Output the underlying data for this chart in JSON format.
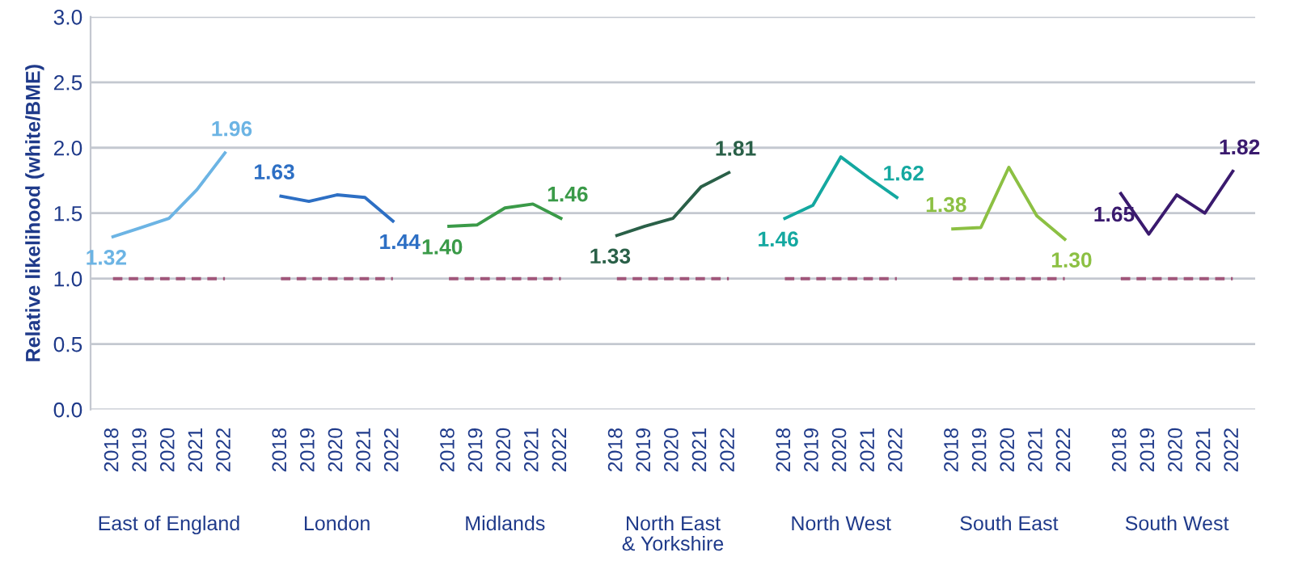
{
  "chart_data": {
    "type": "line",
    "ylabel": "Relative likelihood (white/BME)",
    "categories": [
      "2018",
      "2019",
      "2020",
      "2021",
      "2022",
      null,
      "2018",
      "2019",
      "2020",
      "2021",
      "2022",
      null,
      "2018",
      "2019",
      "2020",
      "2021",
      "2022",
      null,
      "2018",
      "2019",
      "2020",
      "2021",
      "2022",
      null,
      "2018",
      "2019",
      "2020",
      "2021",
      "2022",
      null,
      "2018",
      "2019",
      "2020",
      "2021",
      "2022",
      null,
      "2018",
      "2019",
      "2020",
      "2021",
      "2022"
    ],
    "series": [
      {
        "color": "#6cb4e4",
        "values": [
          1.32,
          1.39,
          1.46,
          1.68,
          1.96,
          null,
          null,
          null,
          null,
          null,
          null,
          null,
          null,
          null,
          null,
          null,
          null,
          null,
          null,
          null,
          null,
          null,
          null,
          null,
          null,
          null,
          null,
          null,
          null,
          null,
          null,
          null,
          null,
          null,
          null,
          null,
          null,
          null,
          null,
          null,
          null
        ],
        "value_labels": [
          "1.32",
          null,
          null,
          null,
          "1.96",
          null,
          null,
          null,
          null,
          null,
          null,
          null,
          null,
          null,
          null,
          null,
          null,
          null,
          null,
          null,
          null,
          null,
          null,
          null,
          null,
          null,
          null,
          null,
          null,
          null,
          null,
          null,
          null,
          null,
          null,
          null,
          null,
          null,
          null,
          null,
          null
        ]
      },
      {
        "color": "#2d6fc4",
        "values": [
          null,
          null,
          null,
          null,
          null,
          null,
          1.63,
          1.59,
          1.64,
          1.62,
          1.44,
          null,
          null,
          null,
          null,
          null,
          null,
          null,
          null,
          null,
          null,
          null,
          null,
          null,
          null,
          null,
          null,
          null,
          null,
          null,
          null,
          null,
          null,
          null,
          null,
          null,
          null,
          null,
          null,
          null,
          null
        ],
        "value_labels": [
          null,
          null,
          null,
          null,
          null,
          null,
          "1.63",
          null,
          null,
          null,
          "1.44",
          null,
          null,
          null,
          null,
          null,
          null,
          null,
          null,
          null,
          null,
          null,
          null,
          null,
          null,
          null,
          null,
          null,
          null,
          null,
          null,
          null,
          null,
          null,
          null,
          null,
          null,
          null,
          null,
          null,
          null
        ]
      },
      {
        "color": "#3a9a48",
        "values": [
          null,
          null,
          null,
          null,
          null,
          null,
          null,
          null,
          null,
          null,
          null,
          null,
          1.4,
          1.41,
          1.54,
          1.57,
          1.46,
          null,
          null,
          null,
          null,
          null,
          null,
          null,
          null,
          null,
          null,
          null,
          null,
          null,
          null,
          null,
          null,
          null,
          null,
          null,
          null,
          null,
          null,
          null,
          null
        ],
        "value_labels": [
          null,
          null,
          null,
          null,
          null,
          null,
          null,
          null,
          null,
          null,
          null,
          null,
          "1.40",
          null,
          null,
          null,
          "1.46",
          null,
          null,
          null,
          null,
          null,
          null,
          null,
          null,
          null,
          null,
          null,
          null,
          null,
          null,
          null,
          null,
          null,
          null,
          null,
          null,
          null,
          null,
          null,
          null
        ]
      },
      {
        "color": "#2a6048",
        "values": [
          null,
          null,
          null,
          null,
          null,
          null,
          null,
          null,
          null,
          null,
          null,
          null,
          null,
          null,
          null,
          null,
          null,
          null,
          1.33,
          1.4,
          1.46,
          1.7,
          1.81,
          null,
          null,
          null,
          null,
          null,
          null,
          null,
          null,
          null,
          null,
          null,
          null,
          null,
          null,
          null,
          null,
          null,
          null
        ],
        "value_labels": [
          null,
          null,
          null,
          null,
          null,
          null,
          null,
          null,
          null,
          null,
          null,
          null,
          null,
          null,
          null,
          null,
          null,
          null,
          "1.33",
          null,
          null,
          null,
          "1.81",
          null,
          null,
          null,
          null,
          null,
          null,
          null,
          null,
          null,
          null,
          null,
          null,
          null,
          null,
          null,
          null,
          null,
          null
        ]
      },
      {
        "color": "#14a8a0",
        "values": [
          null,
          null,
          null,
          null,
          null,
          null,
          null,
          null,
          null,
          null,
          null,
          null,
          null,
          null,
          null,
          null,
          null,
          null,
          null,
          null,
          null,
          null,
          null,
          null,
          1.46,
          1.56,
          1.93,
          1.77,
          1.62,
          null,
          null,
          null,
          null,
          null,
          null,
          null,
          null,
          null,
          null,
          null,
          null
        ],
        "value_labels": [
          null,
          null,
          null,
          null,
          null,
          null,
          null,
          null,
          null,
          null,
          null,
          null,
          null,
          null,
          null,
          null,
          null,
          null,
          null,
          null,
          null,
          null,
          null,
          null,
          "1.46",
          null,
          null,
          null,
          "1.62",
          null,
          null,
          null,
          null,
          null,
          null,
          null,
          null,
          null,
          null,
          null,
          null
        ]
      },
      {
        "color": "#8cc043",
        "values": [
          null,
          null,
          null,
          null,
          null,
          null,
          null,
          null,
          null,
          null,
          null,
          null,
          null,
          null,
          null,
          null,
          null,
          null,
          null,
          null,
          null,
          null,
          null,
          null,
          null,
          null,
          null,
          null,
          null,
          null,
          1.38,
          1.39,
          1.85,
          1.48,
          1.3,
          null,
          null,
          null,
          null,
          null,
          null
        ],
        "value_labels": [
          null,
          null,
          null,
          null,
          null,
          null,
          null,
          null,
          null,
          null,
          null,
          null,
          null,
          null,
          null,
          null,
          null,
          null,
          null,
          null,
          null,
          null,
          null,
          null,
          null,
          null,
          null,
          null,
          null,
          null,
          "1.38",
          null,
          null,
          null,
          "1.30",
          null,
          null,
          null,
          null,
          null,
          null
        ]
      },
      {
        "color": "#3a1a6e",
        "values": [
          null,
          null,
          null,
          null,
          null,
          null,
          null,
          null,
          null,
          null,
          null,
          null,
          null,
          null,
          null,
          null,
          null,
          null,
          null,
          null,
          null,
          null,
          null,
          null,
          null,
          null,
          null,
          null,
          null,
          null,
          null,
          null,
          null,
          null,
          null,
          null,
          1.65,
          1.34,
          1.64,
          1.5,
          1.82
        ],
        "value_labels": [
          null,
          null,
          null,
          null,
          null,
          null,
          null,
          null,
          null,
          null,
          null,
          null,
          null,
          null,
          null,
          null,
          null,
          null,
          null,
          null,
          null,
          null,
          null,
          null,
          null,
          null,
          null,
          null,
          null,
          null,
          null,
          null,
          null,
          null,
          null,
          null,
          "1.65",
          null,
          null,
          null,
          "1.82"
        ]
      },
      {
        "color": "#a0567a",
        "line_style": "dashed",
        "values": [
          1.0,
          1.0,
          1.0,
          1.0,
          1.0,
          null,
          1.0,
          1.0,
          1.0,
          1.0,
          1.0,
          null,
          1.0,
          1.0,
          1.0,
          1.0,
          1.0,
          null,
          1.0,
          1.0,
          1.0,
          1.0,
          1.0,
          null,
          1.0,
          1.0,
          1.0,
          1.0,
          1.0,
          null,
          1.0,
          1.0,
          1.0,
          1.0,
          1.0,
          null,
          1.0,
          1.0,
          1.0,
          1.0,
          1.0
        ]
      }
    ],
    "ylim": [
      0,
      3
    ],
    "yticks": [
      {
        "value": 0,
        "label": "0.0"
      },
      {
        "value": 0.5,
        "label": "0.5"
      },
      {
        "value": 1,
        "label": "1.0"
      },
      {
        "value": 1.5,
        "label": "1.5"
      },
      {
        "value": 2,
        "label": "2.0"
      },
      {
        "value": 2.5,
        "label": "2.5"
      },
      {
        "value": 3,
        "label": "3.0"
      }
    ],
    "annotations": [
      "East of England",
      "London",
      "Midlands",
      "North East\n& Yorkshire",
      "North West",
      "South East",
      "South West"
    ],
    "grid": "y",
    "legend": false,
    "marker": "none",
    "line_style": "solid"
  }
}
